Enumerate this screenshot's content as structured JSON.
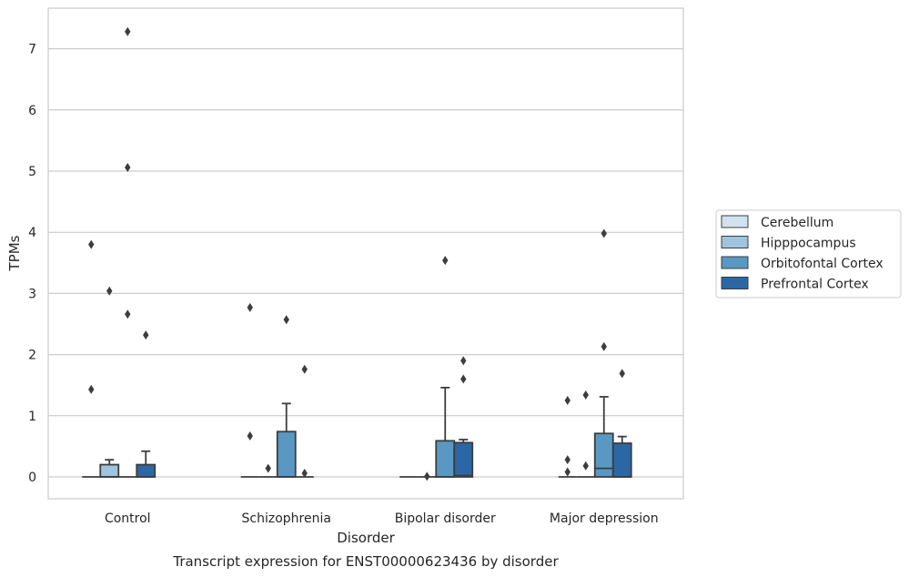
{
  "chart_data": {
    "type": "box",
    "title": "",
    "caption": "Transcript expression for ENST00000623436 by disorder",
    "xlabel": "Disorder",
    "ylabel": "TPMs",
    "ylim": [
      -0.35,
      7.65
    ],
    "yticks": [
      0,
      1,
      2,
      3,
      4,
      5,
      6,
      7
    ],
    "grid": "y",
    "legend_position": "right",
    "categories": [
      "Control",
      "Schizophrenia",
      "Bipolar disorder",
      "Major depression"
    ],
    "series": [
      {
        "name": "Cerebellum",
        "color": "#d1e1ee",
        "boxes": [
          {
            "q1": 0,
            "median": 0,
            "q3": 0,
            "whisker_low": 0,
            "whisker_high": 0,
            "outliers": [
              3.8,
              1.43
            ]
          },
          {
            "q1": 0,
            "median": 0,
            "q3": 0,
            "whisker_low": 0,
            "whisker_high": 0,
            "outliers": [
              2.77,
              0.67
            ]
          },
          {
            "q1": 0,
            "median": 0,
            "q3": 0,
            "whisker_low": 0,
            "whisker_high": 0,
            "outliers": []
          },
          {
            "q1": 0,
            "median": 0,
            "q3": 0,
            "whisker_low": 0,
            "whisker_high": 0,
            "outliers": [
              1.25,
              0.28,
              0.08
            ]
          }
        ]
      },
      {
        "name": "Hipppocampus",
        "color": "#9ec5dd",
        "boxes": [
          {
            "q1": 0,
            "median": 0,
            "q3": 0.2,
            "whisker_low": 0,
            "whisker_high": 0.28,
            "outliers": [
              3.04
            ]
          },
          {
            "q1": 0,
            "median": 0,
            "q3": 0,
            "whisker_low": 0,
            "whisker_high": 0,
            "outliers": [
              0.14
            ]
          },
          {
            "q1": 0,
            "median": 0,
            "q3": 0,
            "whisker_low": 0,
            "whisker_high": 0,
            "outliers": [
              0.01
            ]
          },
          {
            "q1": 0,
            "median": 0,
            "q3": 0,
            "whisker_low": 0,
            "whisker_high": 0,
            "outliers": [
              1.34,
              0.18
            ]
          }
        ]
      },
      {
        "name": "Orbitofontal Cortex",
        "color": "#5a98c4",
        "boxes": [
          {
            "q1": 0,
            "median": 0,
            "q3": 0,
            "whisker_low": 0,
            "whisker_high": 0,
            "outliers": [
              7.28,
              5.06,
              2.66
            ]
          },
          {
            "q1": 0,
            "median": 0,
            "q3": 0.74,
            "whisker_low": 0,
            "whisker_high": 1.2,
            "outliers": [
              2.57
            ]
          },
          {
            "q1": 0,
            "median": 0,
            "q3": 0.59,
            "whisker_low": 0,
            "whisker_high": 1.46,
            "outliers": [
              3.54
            ]
          },
          {
            "q1": 0,
            "median": 0.14,
            "q3": 0.71,
            "whisker_low": 0,
            "whisker_high": 1.31,
            "outliers": [
              3.98,
              2.13
            ]
          }
        ]
      },
      {
        "name": "Prefrontal Cortex",
        "color": "#2b67a4",
        "boxes": [
          {
            "q1": 0,
            "median": 0,
            "q3": 0.2,
            "whisker_low": 0,
            "whisker_high": 0.42,
            "outliers": [
              2.32
            ]
          },
          {
            "q1": 0,
            "median": 0,
            "q3": 0,
            "whisker_low": 0,
            "whisker_high": 0,
            "outliers": [
              1.76,
              0.06
            ]
          },
          {
            "q1": 0,
            "median": 0.02,
            "q3": 0.56,
            "whisker_low": 0,
            "whisker_high": 0.61,
            "outliers": [
              1.9,
              1.6
            ]
          },
          {
            "q1": 0,
            "median": 0,
            "q3": 0.55,
            "whisker_low": 0,
            "whisker_high": 0.66,
            "outliers": [
              1.69
            ]
          }
        ]
      }
    ]
  }
}
